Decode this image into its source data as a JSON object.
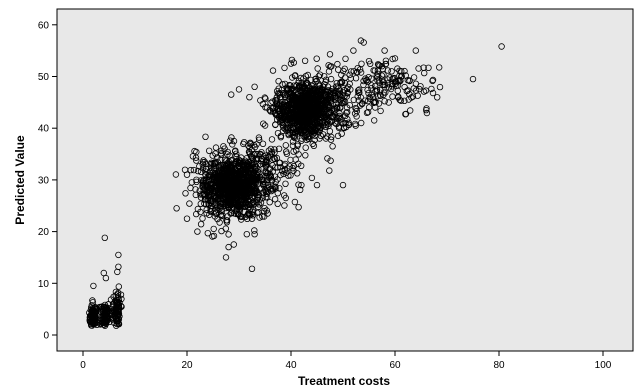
{
  "chart_data": {
    "type": "scatter",
    "xlabel": "Treatment costs",
    "ylabel": "Predicted Value",
    "xlim": [
      -5,
      105
    ],
    "ylim": [
      -2,
      62
    ],
    "x_ticks": [
      0,
      20,
      40,
      60,
      80,
      100
    ],
    "y_ticks": [
      0,
      10,
      20,
      30,
      40,
      50,
      60
    ],
    "grid": false,
    "colors": {
      "plot_background": "#e8e8e8",
      "marker_stroke": "#000000"
    },
    "marker": "open-circle",
    "clusters": [
      {
        "center": [
          2,
          3.5
        ],
        "spread": [
          0.35,
          1.2
        ],
        "count": 90
      },
      {
        "center": [
          4.2,
          4
        ],
        "spread": [
          0.45,
          1.3
        ],
        "count": 80
      },
      {
        "center": [
          6.6,
          5
        ],
        "spread": [
          0.35,
          1.6
        ],
        "count": 80
      },
      {
        "center": [
          28.5,
          28.5
        ],
        "spread": [
          3.2,
          2.8
        ],
        "count": 900
      },
      {
        "center": [
          34,
          32
        ],
        "spread": [
          4,
          3
        ],
        "count": 220
      },
      {
        "center": [
          42.5,
          43.5
        ],
        "spread": [
          2.8,
          2.6
        ],
        "count": 800
      },
      {
        "center": [
          47,
          45
        ],
        "spread": [
          5,
          3.5
        ],
        "count": 250
      },
      {
        "center": [
          58,
          49
        ],
        "spread": [
          4.5,
          2.5
        ],
        "count": 130
      }
    ],
    "points": [
      [
        80.5,
        55.8
      ],
      [
        75,
        49.5
      ],
      [
        4.2,
        18.8
      ],
      [
        6.8,
        15.5
      ],
      [
        6.8,
        13.2
      ],
      [
        6.6,
        12.2
      ],
      [
        4,
        12
      ],
      [
        4.4,
        11
      ],
      [
        2,
        9.5
      ],
      [
        32.5,
        12.8
      ],
      [
        27.5,
        15
      ],
      [
        28,
        17
      ],
      [
        29,
        17.5
      ],
      [
        18,
        24.5
      ],
      [
        20,
        22.5
      ],
      [
        20,
        31
      ],
      [
        33,
        19.5
      ],
      [
        45,
        29
      ],
      [
        50,
        29
      ],
      [
        62,
        42.7
      ],
      [
        53.5,
        41
      ],
      [
        66,
        43.5
      ],
      [
        64,
        55
      ],
      [
        52,
        55
      ],
      [
        58,
        55
      ],
      [
        47.5,
        54.3
      ],
      [
        40,
        52.5
      ],
      [
        28.5,
        46.5
      ],
      [
        30,
        47.5
      ],
      [
        32,
        46
      ],
      [
        33,
        48
      ],
      [
        67,
        47.6
      ],
      [
        57.5,
        52
      ],
      [
        60,
        53.5
      ],
      [
        48,
        36.5
      ],
      [
        35.5,
        23.5
      ],
      [
        39,
        26.5
      ],
      [
        25.5,
        33.5
      ],
      [
        27,
        36.5
      ],
      [
        56,
        41.5
      ],
      [
        31.5,
        19.5
      ],
      [
        22,
        20
      ],
      [
        24,
        19.7
      ],
      [
        42,
        29
      ],
      [
        38.7,
        27
      ],
      [
        65.5,
        51.7
      ]
    ]
  }
}
